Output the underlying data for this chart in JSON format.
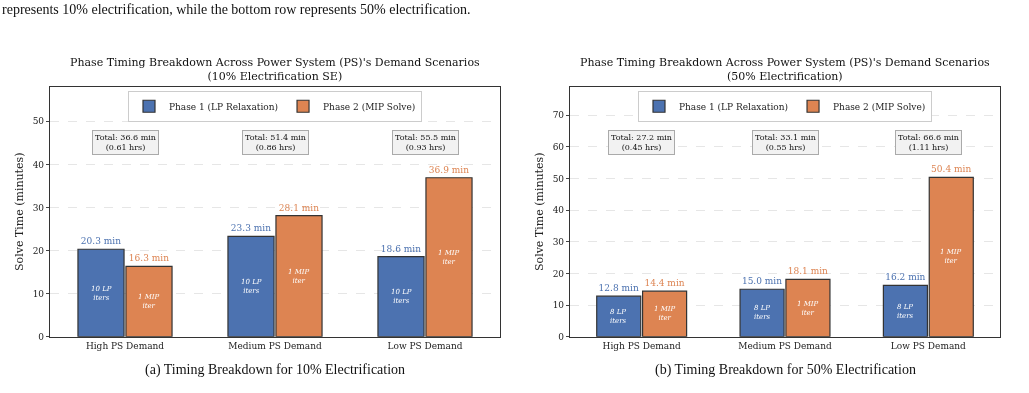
{
  "chart_data": [
    {
      "type": "bar",
      "title": "Phase Timing Breakdown Across Power System (PS)'s Demand Scenarios\n(10% Electrification SE)",
      "ylabel": "Solve Time (minutes)",
      "categories": [
        "High PS Demand",
        "Medium PS Demand",
        "Low PS Demand"
      ],
      "series": [
        {
          "name": "Phase 1 (LP Relaxation)",
          "color": "#4c72b0",
          "values": [
            20.3,
            23.3,
            18.6
          ],
          "value_labels": [
            "20.3 min",
            "23.3 min",
            "18.6 min"
          ]
        },
        {
          "name": "Phase 2 (MIP Solve)",
          "color": "#dd8452",
          "values": [
            16.3,
            28.1,
            36.9
          ],
          "value_labels": [
            "16.3 min",
            "28.1 min",
            "36.9 min"
          ]
        }
      ],
      "ylim": [
        0,
        58
      ],
      "yticks": [
        0,
        10,
        20,
        30,
        40,
        50
      ],
      "grid": "y",
      "legend": "top",
      "annotations": [
        "represents 10% electrification, while the bottom row represents 50% electrification.",
        "Total: 36.6 min\n(0.61 hrs)",
        "Total: 51.4 min\n(0.86 hrs)",
        "Total: 55.5 min\n(0.93 hrs)",
        {
          "text": "10 LP\niters",
          "x": "High PS Demand",
          "y": 10.1
        },
        {
          "text": "1 MIP\niter",
          "x": "High PS Demand",
          "y": 8.1
        },
        {
          "text": "10 LP\niters",
          "x": "Medium PS Demand",
          "y": 11.6
        },
        {
          "text": "1 MIP\niter",
          "x": "Medium PS Demand",
          "y": 14.0
        },
        {
          "text": "10 LP\niters",
          "x": "Low PS Demand",
          "y": 9.3
        },
        {
          "text": "1 MIP\niter",
          "x": "Low PS Demand",
          "y": 18.4
        },
        "(a) Timing Breakdown for 10% Electrification"
      ]
    },
    {
      "type": "bar",
      "title": "Phase Timing Breakdown Across Power System (PS)'s Demand Scenarios\n(50% Electrification)",
      "ylabel": "Solve Time (minutes)",
      "categories": [
        "High PS Demand",
        "Medium PS Demand",
        "Low PS Demand"
      ],
      "series": [
        {
          "name": "Phase 1 (LP Relaxation)",
          "color": "#4c72b0",
          "values": [
            12.8,
            15.0,
            16.2
          ],
          "value_labels": [
            "12.8 min",
            "15.0 min",
            "16.2 min"
          ]
        },
        {
          "name": "Phase 2 (MIP Solve)",
          "color": "#dd8452",
          "values": [
            14.4,
            18.1,
            50.4
          ],
          "value_labels": [
            "14.4 min",
            "18.1 min",
            "50.4 min"
          ]
        }
      ],
      "ylim": [
        0,
        79
      ],
      "yticks": [
        0,
        10,
        20,
        30,
        40,
        50,
        60,
        70
      ],
      "grid": "y",
      "legend": "top",
      "annotations": [
        "Total: 27.2 min\n(0.45 hrs)",
        "Total: 33.1 min\n(0.55 hrs)",
        "Total: 66.6 min\n(1.11 hrs)",
        {
          "text": "8 LP\niters",
          "x": "High PS Demand",
          "y": 6.4
        },
        {
          "text": "1 MIP\niter",
          "x": "High PS Demand",
          "y": 7.2
        },
        {
          "text": "8 LP\niters",
          "x": "Medium PS Demand",
          "y": 7.5
        },
        {
          "text": "1 MIP\niter",
          "x": "Medium PS Demand",
          "y": 9.0
        },
        {
          "text": "8 LP\niters",
          "x": "Low PS Demand",
          "y": 8.1
        },
        {
          "text": "1 MIP\niter",
          "x": "Low PS Demand",
          "y": 25.2
        },
        "(b) Timing Breakdown for 50% Electrification"
      ]
    }
  ]
}
